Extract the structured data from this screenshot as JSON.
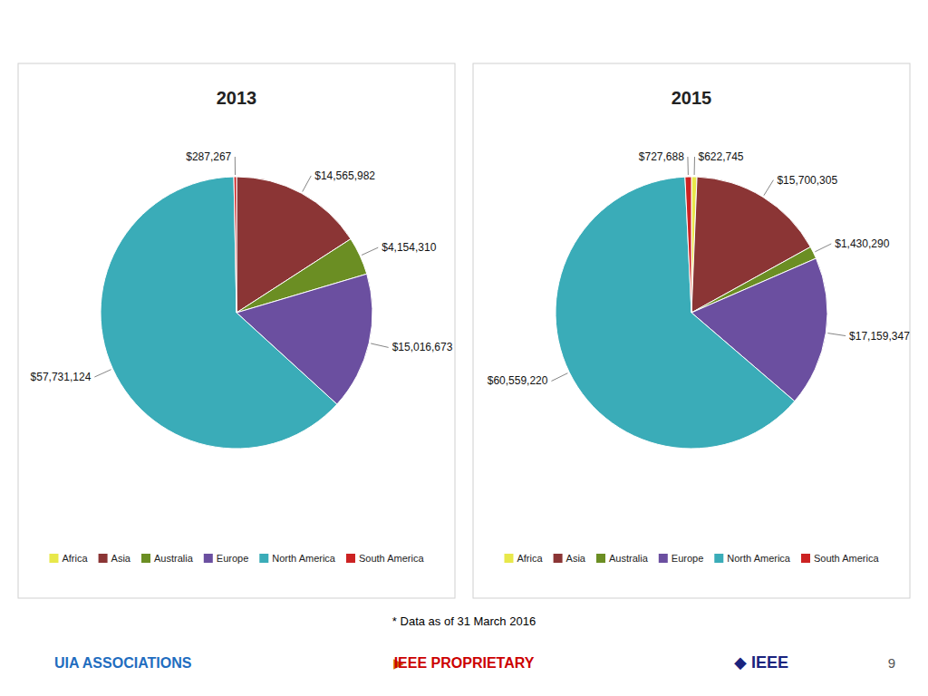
{
  "chart_data": [
    {
      "type": "pie",
      "title": "2013",
      "categories": [
        "Africa",
        "Asia",
        "Australia",
        "Europe",
        "North America",
        "South America"
      ],
      "values": [
        0,
        14565982,
        4154310,
        15016673,
        57731124,
        287267
      ],
      "value_labels": [
        null,
        "$14,565,982",
        "$4,154,310",
        "$15,016,673",
        "$57,731,124",
        "$287,267"
      ],
      "colors": [
        "#e8e84a",
        "#8b3535",
        "#6b8e23",
        "#6b4fa0",
        "#3aacb8",
        "#cc2222"
      ],
      "data_labels": true,
      "legend": "bottom"
    },
    {
      "type": "pie",
      "title": "2015",
      "categories": [
        "Africa",
        "Asia",
        "Australia",
        "Europe",
        "North America",
        "South America"
      ],
      "values": [
        622745,
        15700305,
        1430290,
        17159347,
        60559220,
        727688
      ],
      "value_labels": [
        "$622,745",
        "$15,700,305",
        "$1,430,290",
        "$17,159,347",
        "$60,559,220",
        "$727,688"
      ],
      "colors": [
        "#e8e84a",
        "#8b3535",
        "#6b8e23",
        "#6b4fa0",
        "#3aacb8",
        "#cc2222"
      ],
      "data_labels": true,
      "legend": "bottom"
    }
  ],
  "annotations": [
    {
      "text": "* Data as of 31 March 2016",
      "color": "#000000"
    },
    {
      "text": "UIA ASSOCIATIONS",
      "color": "#1f6dbf"
    },
    {
      "text": "▶",
      "color": "#cc6600"
    },
    {
      "text": "IEEE PROPRIETARY",
      "color": "#cc0000"
    },
    {
      "text": "◆ IEEE",
      "color": "#1a237e"
    },
    {
      "text": "9",
      "color": "#555555"
    }
  ]
}
